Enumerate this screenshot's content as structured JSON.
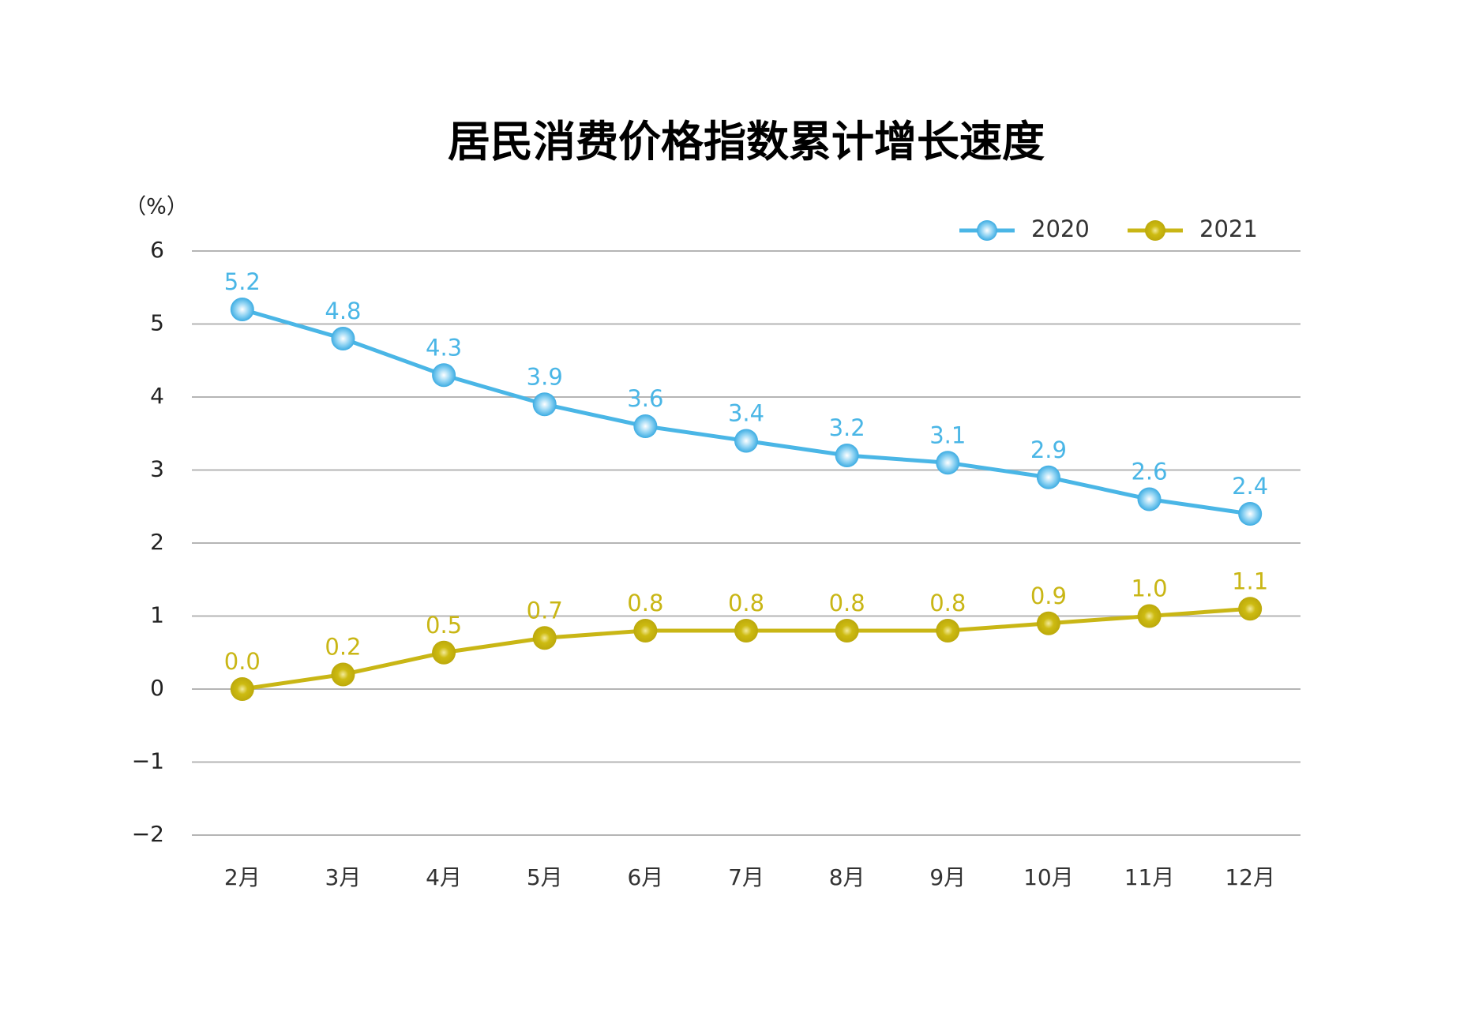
{
  "chart_data": {
    "type": "line",
    "title": "居民消费价格指数累计增长速度",
    "y_label": "（%）",
    "categories": [
      "2月",
      "3月",
      "4月",
      "5月",
      "6月",
      "7月",
      "8月",
      "9月",
      "10月",
      "11月",
      "12月"
    ],
    "series": [
      {
        "name": "2020",
        "color": "#4ab6e6",
        "values": [
          5.2,
          4.8,
          4.3,
          3.9,
          3.6,
          3.4,
          3.2,
          3.1,
          2.9,
          2.6,
          2.4
        ],
        "value_labels": [
          "5.2",
          "4.8",
          "4.3",
          "3.9",
          "3.6",
          "3.4",
          "3.2",
          "3.1",
          "2.9",
          "2.6",
          "2.4"
        ]
      },
      {
        "name": "2021",
        "color": "#c9b615",
        "values": [
          0.0,
          0.2,
          0.5,
          0.7,
          0.8,
          0.8,
          0.8,
          0.8,
          0.9,
          1.0,
          1.1
        ],
        "value_labels": [
          "0.0",
          "0.2",
          "0.5",
          "0.7",
          "0.8",
          "0.8",
          "0.8",
          "0.8",
          "0.9",
          "1.0",
          "1.1"
        ]
      }
    ],
    "ylim": [
      -2,
      6
    ],
    "yticks": [
      {
        "value": -2,
        "label": "−2"
      },
      {
        "value": -1,
        "label": "−1"
      },
      0,
      1,
      2,
      3,
      4,
      5,
      6
    ],
    "grid": true,
    "legend": "top-right"
  }
}
